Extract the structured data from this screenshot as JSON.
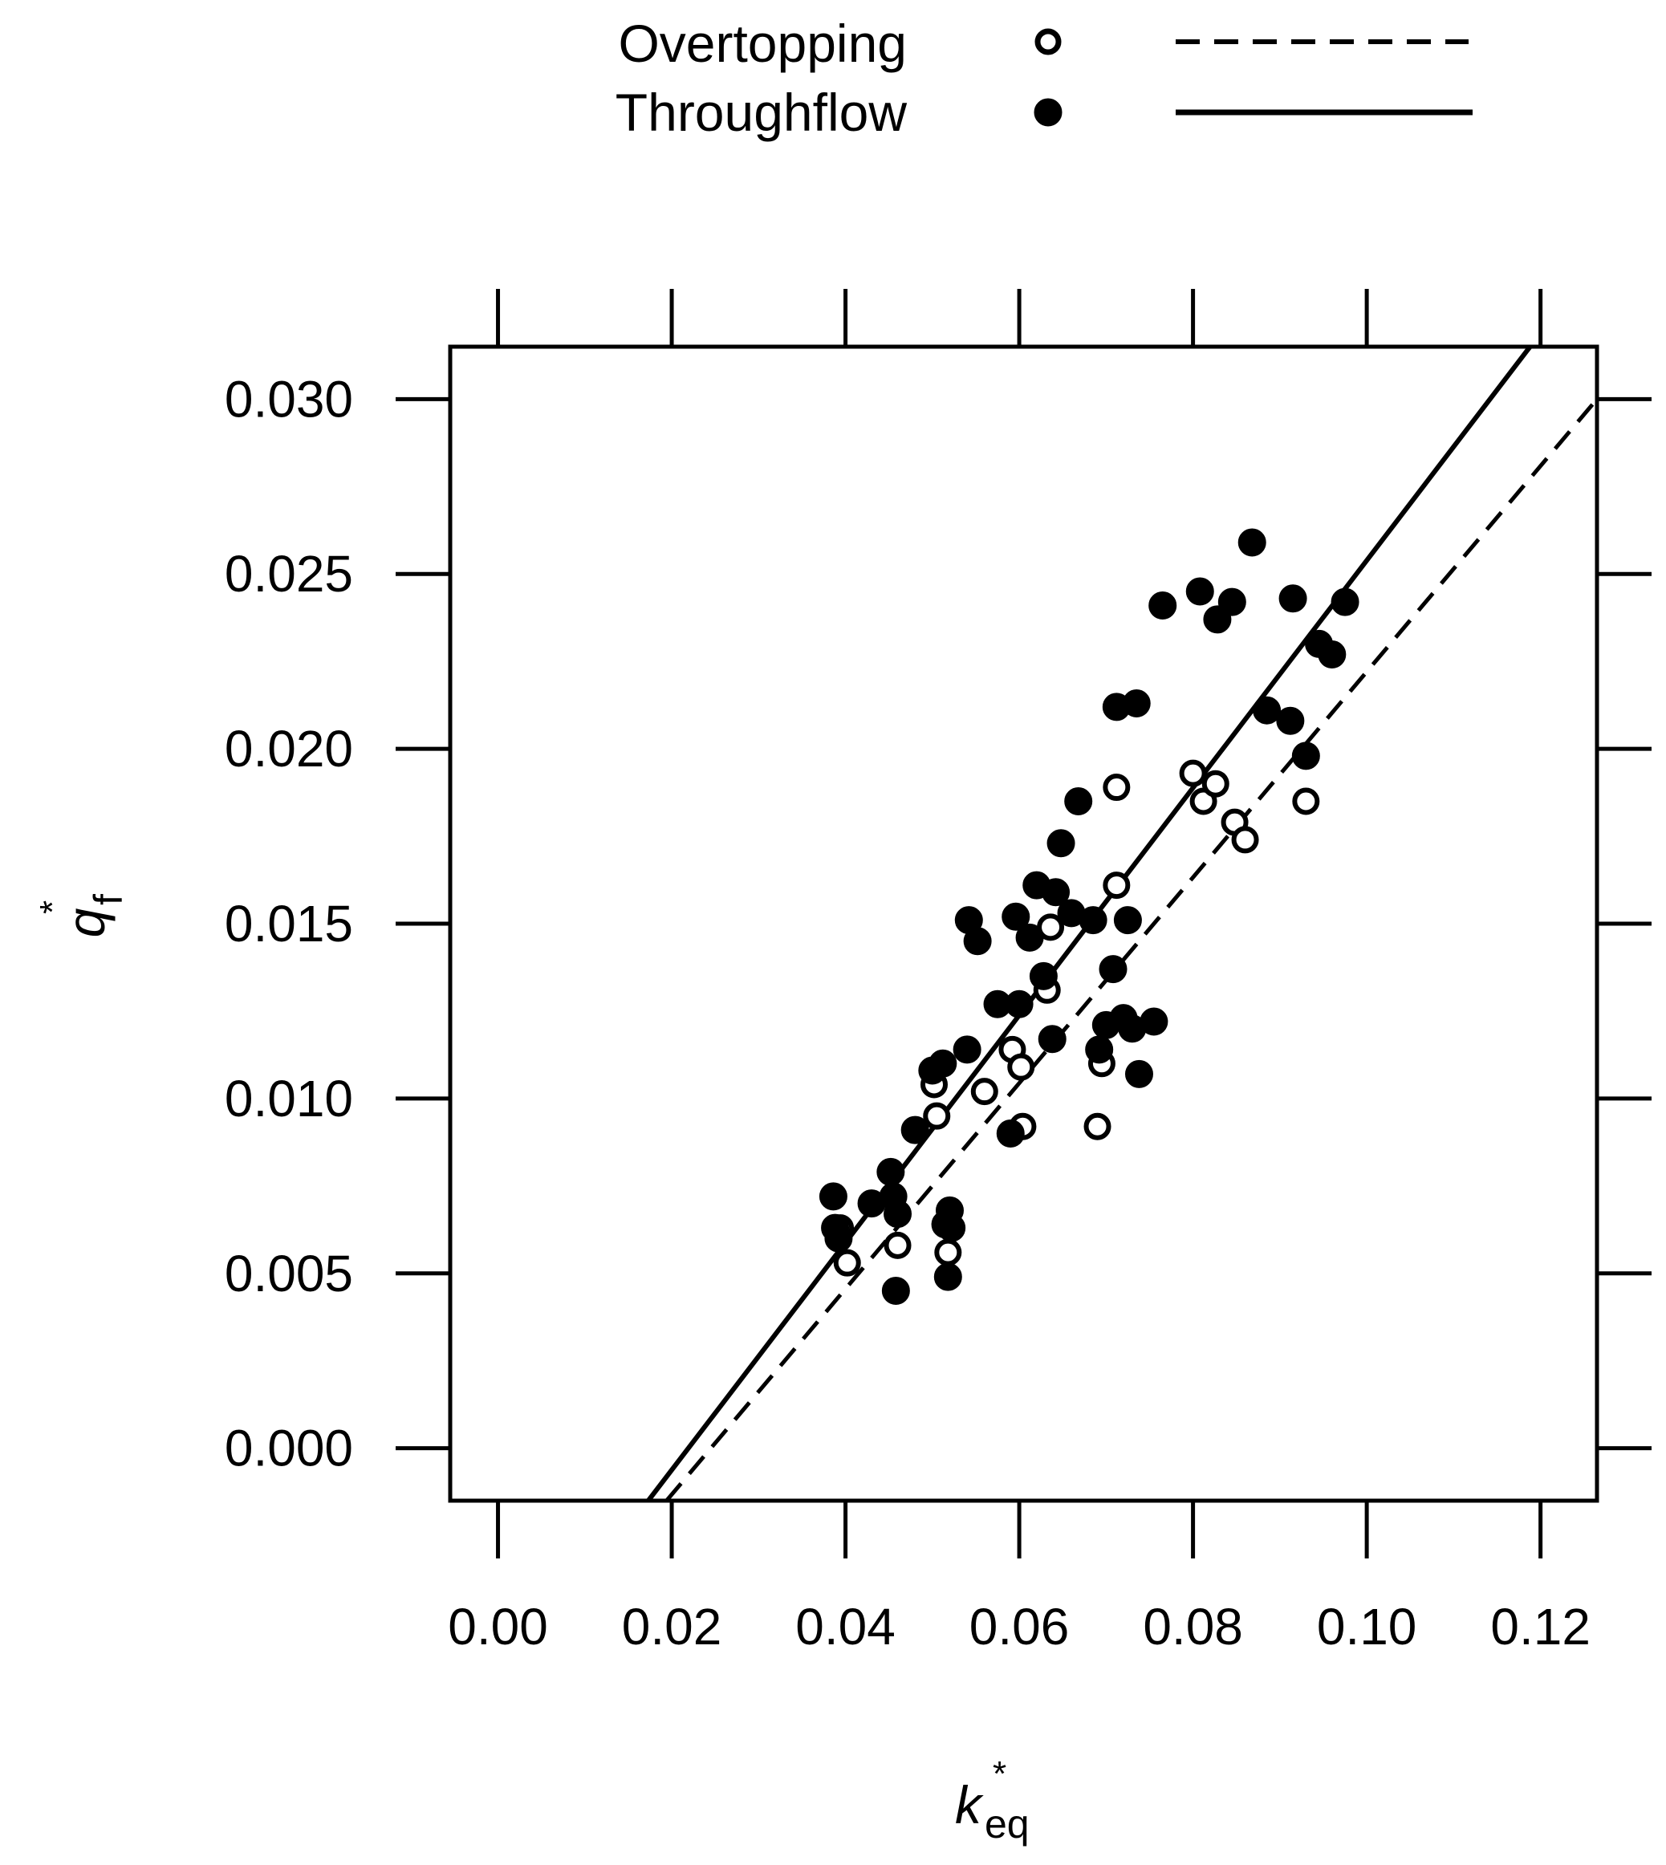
{
  "chart_data": {
    "type": "scatter",
    "xlabel": "k",
    "xlabel_super": "*",
    "xlabel_sub": "eq",
    "ylabel": "q",
    "ylabel_super": "*",
    "ylabel_sub": "f",
    "xlim": [
      -0.0055,
      0.1265
    ],
    "ylim": [
      -0.0015,
      0.0315
    ],
    "xticks": [
      0.0,
      0.02,
      0.04,
      0.06,
      0.08,
      0.1,
      0.12
    ],
    "xtick_labels": [
      "0.00",
      "0.02",
      "0.04",
      "0.06",
      "0.08",
      "0.10",
      "0.12"
    ],
    "yticks": [
      0.0,
      0.005,
      0.01,
      0.015,
      0.02,
      0.025,
      0.03
    ],
    "ytick_labels": [
      "0.000",
      "0.005",
      "0.010",
      "0.015",
      "0.020",
      "0.025",
      "0.030"
    ],
    "grid": false,
    "legend_position": "top",
    "series": [
      {
        "name": "Overtopping",
        "marker": "open-circle",
        "line": "dashed",
        "fit_line": [
          [
            0.0194,
            -0.0015
          ],
          [
            0.1265,
            0.03
          ]
        ],
        "points": [
          [
            0.0394,
            0.0063
          ],
          [
            0.0402,
            0.0053
          ],
          [
            0.046,
            0.0058
          ],
          [
            0.0502,
            0.0104
          ],
          [
            0.0505,
            0.0095
          ],
          [
            0.0518,
            0.0056
          ],
          [
            0.056,
            0.0102
          ],
          [
            0.0592,
            0.0114
          ],
          [
            0.0602,
            0.0109
          ],
          [
            0.0604,
            0.0092
          ],
          [
            0.0632,
            0.0131
          ],
          [
            0.0636,
            0.0149
          ],
          [
            0.069,
            0.0092
          ],
          [
            0.0695,
            0.011
          ],
          [
            0.0712,
            0.0161
          ],
          [
            0.0712,
            0.0189
          ],
          [
            0.08,
            0.0193
          ],
          [
            0.0812,
            0.0185
          ],
          [
            0.0826,
            0.019
          ],
          [
            0.0848,
            0.0179
          ],
          [
            0.086,
            0.0174
          ],
          [
            0.093,
            0.0185
          ]
        ]
      },
      {
        "name": "Throughflow",
        "marker": "filled-circle",
        "line": "solid",
        "fit_line": [
          [
            0.0173,
            -0.0015
          ],
          [
            0.1188,
            0.0315
          ]
        ],
        "points": [
          [
            0.0386,
            0.0072
          ],
          [
            0.0388,
            0.0063
          ],
          [
            0.0392,
            0.006
          ],
          [
            0.043,
            0.007
          ],
          [
            0.0452,
            0.0079
          ],
          [
            0.0455,
            0.0072
          ],
          [
            0.0458,
            0.0045
          ],
          [
            0.046,
            0.0067
          ],
          [
            0.05,
            0.0108
          ],
          [
            0.0512,
            0.011
          ],
          [
            0.0515,
            0.0064
          ],
          [
            0.0518,
            0.0049
          ],
          [
            0.052,
            0.0068
          ],
          [
            0.0522,
            0.0063
          ],
          [
            0.048,
            0.0091
          ],
          [
            0.054,
            0.0114
          ],
          [
            0.0542,
            0.0151
          ],
          [
            0.0552,
            0.0145
          ],
          [
            0.0575,
            0.0127
          ],
          [
            0.059,
            0.009
          ],
          [
            0.0596,
            0.0152
          ],
          [
            0.06,
            0.0127
          ],
          [
            0.0612,
            0.0146
          ],
          [
            0.062,
            0.0161
          ],
          [
            0.0628,
            0.0135
          ],
          [
            0.0638,
            0.0117
          ],
          [
            0.0642,
            0.0159
          ],
          [
            0.0648,
            0.0173
          ],
          [
            0.066,
            0.0153
          ],
          [
            0.0668,
            0.0185
          ],
          [
            0.0685,
            0.0151
          ],
          [
            0.0692,
            0.0114
          ],
          [
            0.07,
            0.0121
          ],
          [
            0.0708,
            0.0137
          ],
          [
            0.0712,
            0.0212
          ],
          [
            0.072,
            0.0123
          ],
          [
            0.0725,
            0.0151
          ],
          [
            0.073,
            0.012
          ],
          [
            0.0735,
            0.0213
          ],
          [
            0.0738,
            0.0107
          ],
          [
            0.0755,
            0.0122
          ],
          [
            0.0765,
            0.0241
          ],
          [
            0.0808,
            0.0245
          ],
          [
            0.0828,
            0.0237
          ],
          [
            0.0845,
            0.0242
          ],
          [
            0.0868,
            0.0259
          ],
          [
            0.0885,
            0.0211
          ],
          [
            0.0912,
            0.0208
          ],
          [
            0.0915,
            0.0243
          ],
          [
            0.093,
            0.0198
          ],
          [
            0.0945,
            0.023
          ],
          [
            0.096,
            0.0227
          ],
          [
            0.0975,
            0.0242
          ]
        ]
      }
    ]
  },
  "legend": {
    "items": [
      {
        "label": "Overtopping"
      },
      {
        "label": "Throughflow"
      }
    ]
  }
}
